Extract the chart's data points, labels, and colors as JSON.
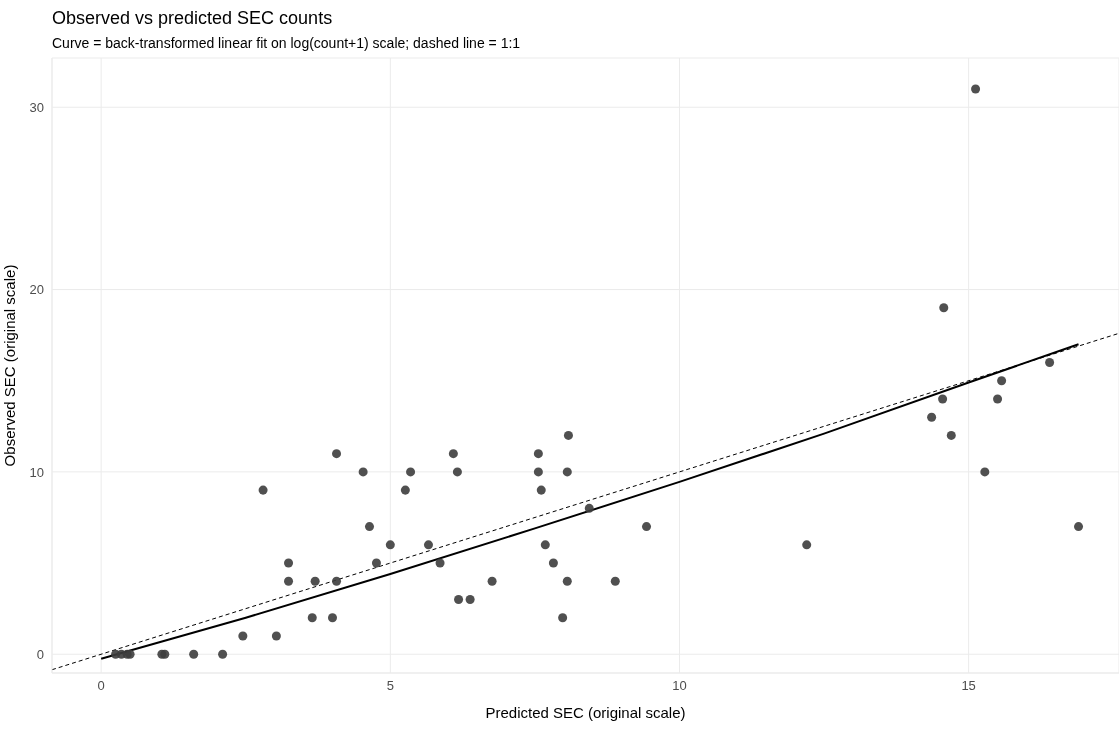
{
  "chart_data": {
    "type": "scatter",
    "title": "Observed vs predicted SEC counts",
    "subtitle": "Curve = back-transformed linear fit on log(count+1) scale; dashed line = 1:1",
    "xlabel": "Predicted SEC (original scale)",
    "ylabel": "Observed SEC (original scale)",
    "xlim": [
      -0.85,
      17.6
    ],
    "ylim": [
      -1.03,
      32.7
    ],
    "xticks": [
      0,
      5,
      10,
      15
    ],
    "yticks": [
      0,
      10,
      20,
      30
    ],
    "grid": true,
    "marker": "circle",
    "series": [
      {
        "color": "#3d3d3d",
        "x": [
          0.25,
          0.35,
          0.45,
          0.5,
          1.05,
          1.1,
          1.6,
          2.1,
          2.45,
          3.03,
          2.8,
          3.24,
          3.24,
          3.7,
          3.65,
          4.0,
          4.07,
          4.07,
          4.53,
          4.64,
          4.76,
          5.0,
          5.26,
          5.35,
          5.66,
          5.86,
          6.09,
          6.16,
          6.18,
          6.38,
          6.76,
          7.56,
          7.56,
          7.61,
          7.68,
          7.82,
          7.98,
          8.06,
          8.08,
          8.06,
          8.44,
          8.89,
          9.43,
          12.2,
          14.57,
          15.12,
          14.36,
          14.55,
          14.7,
          15.28,
          15.5,
          15.57,
          16.4,
          16.9
        ],
        "values": [
          0,
          0,
          0,
          0,
          0,
          0,
          0,
          0,
          1,
          1,
          9,
          5,
          4,
          4,
          2,
          2,
          4,
          11,
          10,
          7,
          5,
          6,
          9,
          10,
          6,
          5,
          11,
          10,
          3,
          3,
          4,
          11,
          10,
          9,
          6,
          5,
          2,
          4,
          12,
          10,
          8,
          4,
          7,
          6,
          19,
          31,
          13,
          14,
          12,
          10,
          14,
          15,
          16,
          7
        ]
      },
      {
        "type": "line",
        "color": "#000000",
        "line_style": "solid",
        "marker": "none",
        "x": [
          0,
          2.5,
          5,
          7.5,
          10,
          12.5,
          15,
          16.9
        ],
        "values": [
          -0.25,
          2.0,
          4.4,
          6.9,
          9.45,
          12.1,
          14.9,
          17.0
        ]
      },
      {
        "type": "line",
        "color": "#000000",
        "line_style": "dashed",
        "marker": "none",
        "x": [
          -0.85,
          17.6
        ],
        "values": [
          -0.85,
          17.6
        ]
      }
    ]
  }
}
